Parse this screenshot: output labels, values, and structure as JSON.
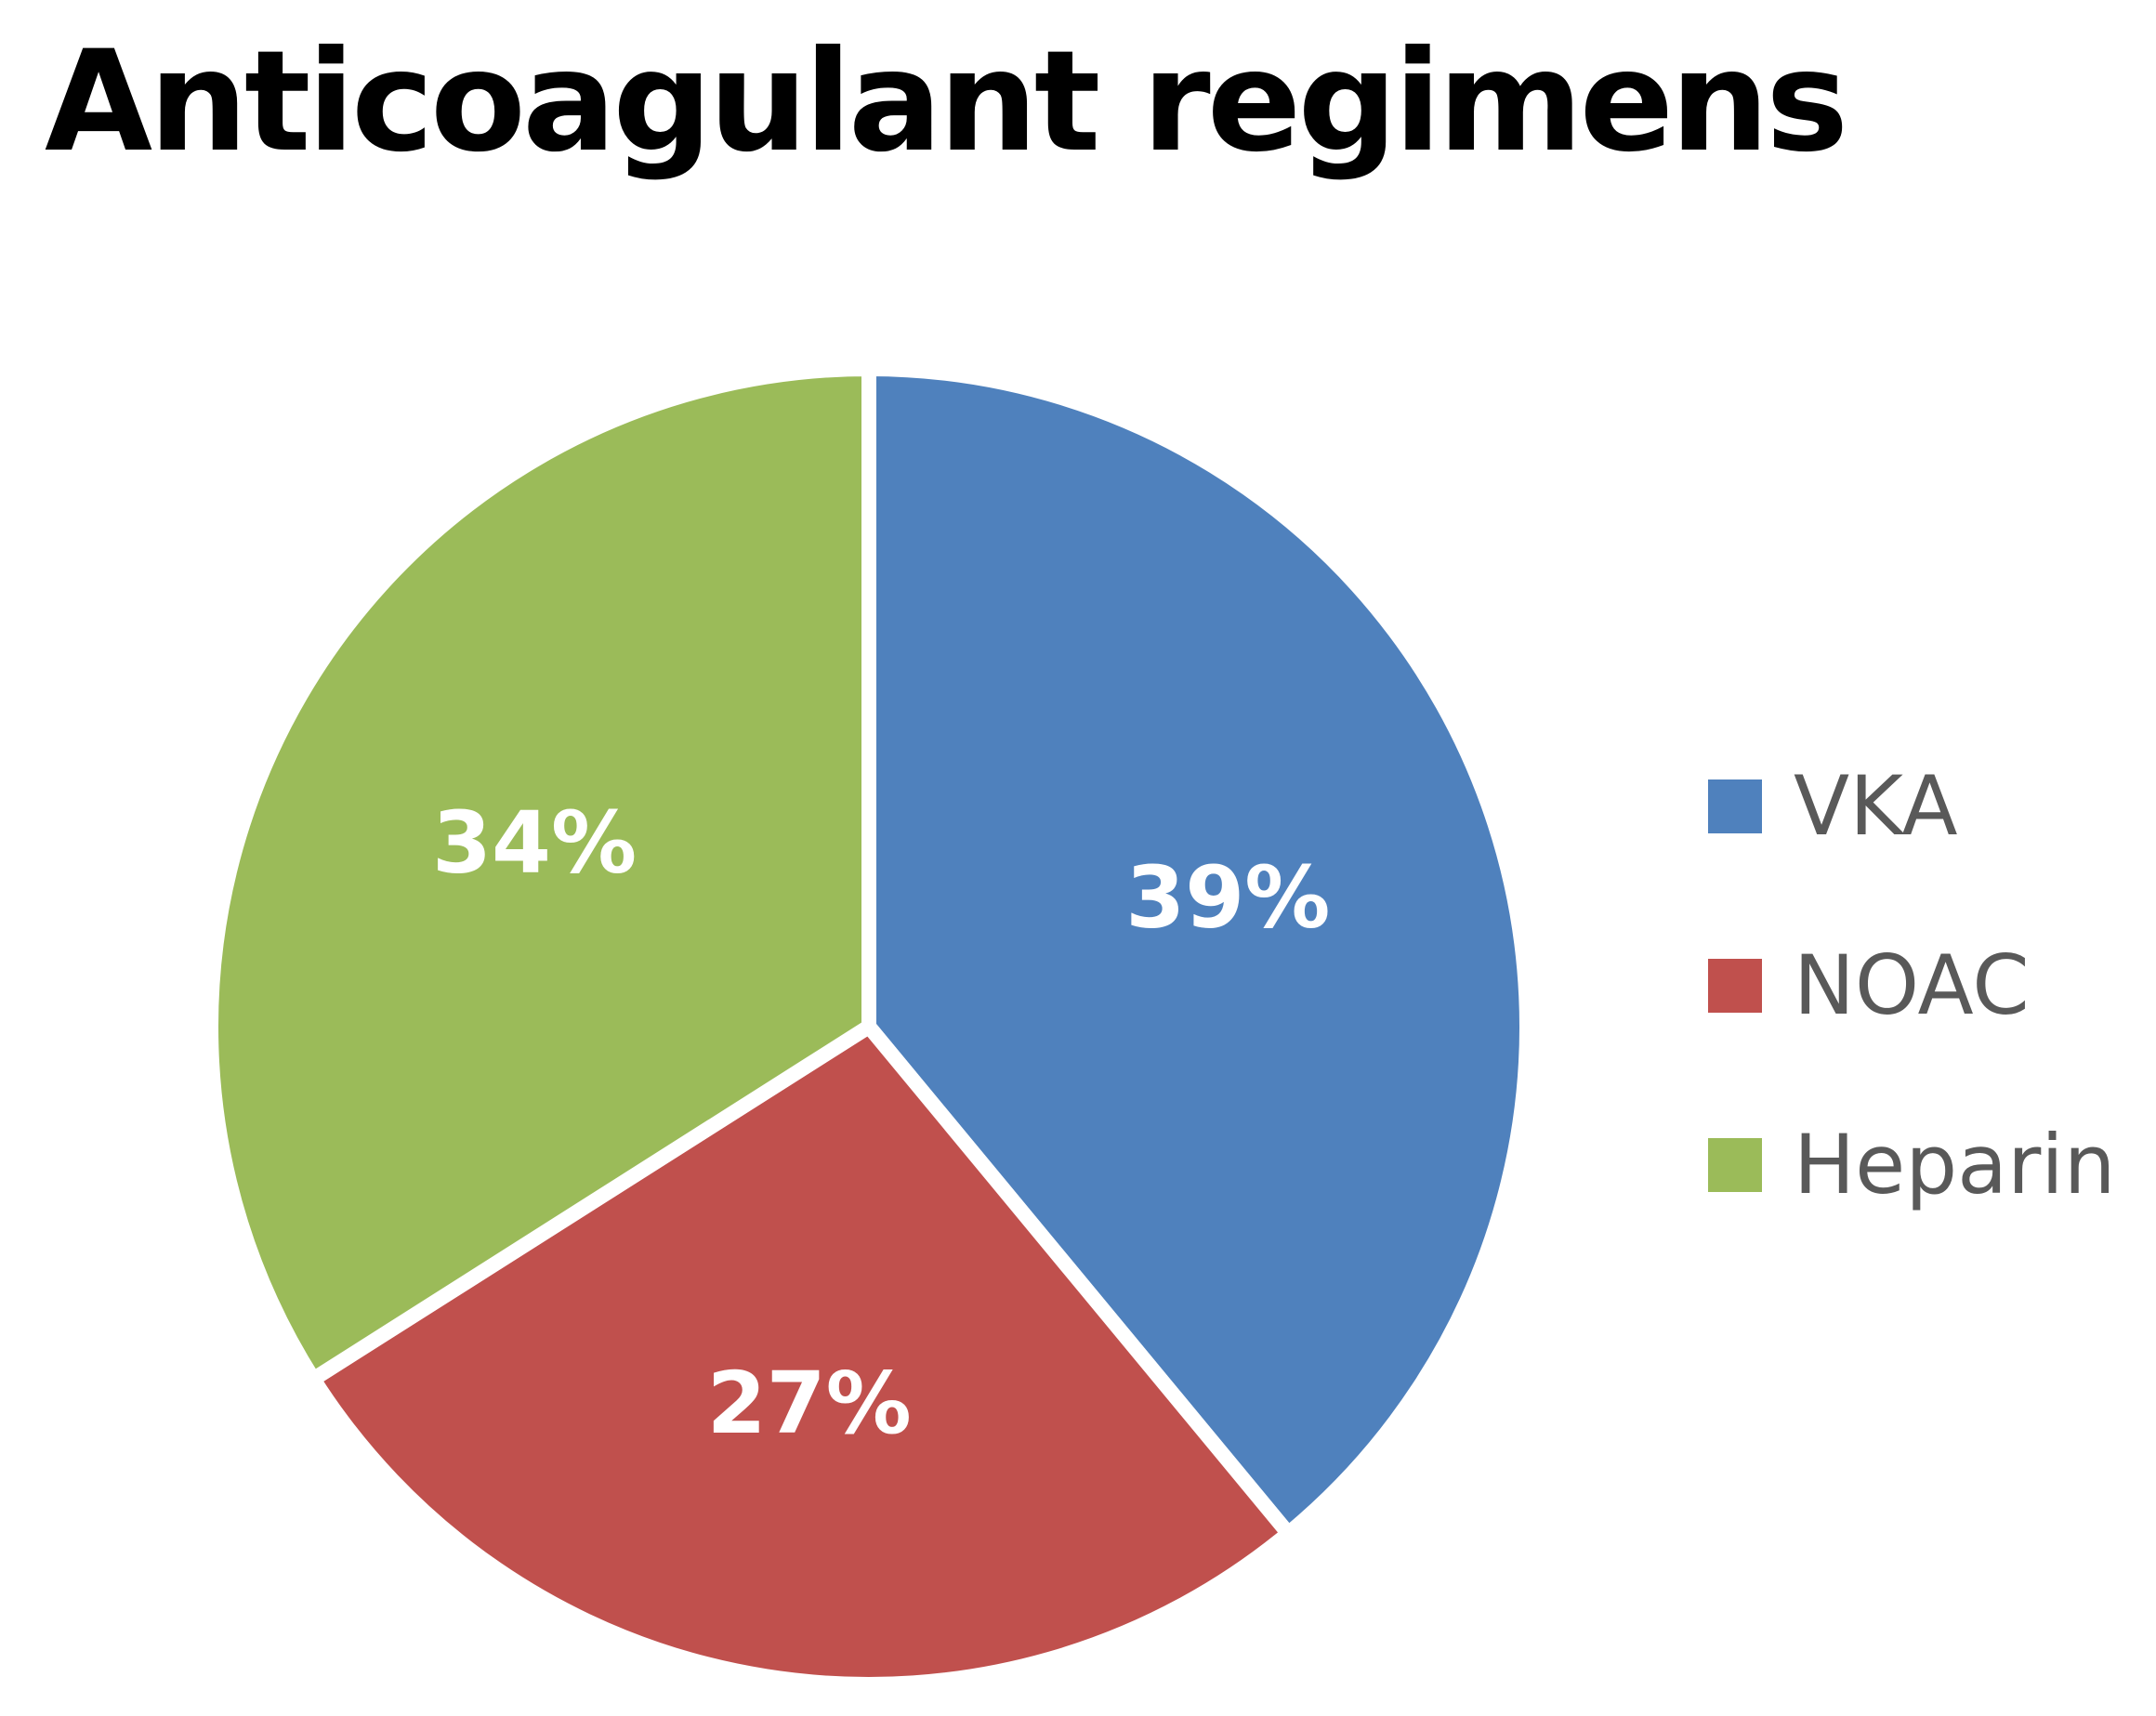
{
  "chart_data": {
    "type": "pie",
    "title": "Anticoagulant regimens",
    "slices": [
      {
        "label": "VKA",
        "value": 39,
        "value_label": "39%",
        "color": "#4F81BD"
      },
      {
        "label": "NOAC",
        "value": 27,
        "value_label": "27%",
        "color": "#C0504D"
      },
      {
        "label": "Heparin",
        "value": 34,
        "value_label": "34%",
        "color": "#9BBB59"
      }
    ],
    "start_angle": "12 o'clock",
    "direction": "clockwise",
    "legend_position": "right"
  }
}
